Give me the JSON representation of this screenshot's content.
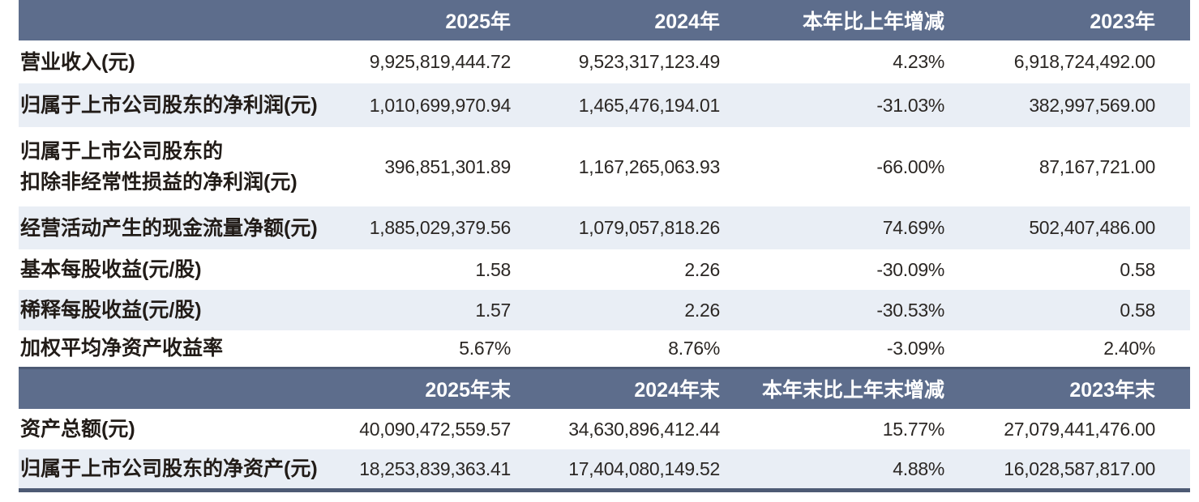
{
  "colors": {
    "header_band": "#5d6d8c",
    "stripe_row": "#e9eef5",
    "dark_border": "#4d5a74",
    "header_text": "#ffffff",
    "label_text": "#221c18",
    "number_text": "#2b2724"
  },
  "table": {
    "header_annual": {
      "blank": "",
      "cols": [
        "2025年",
        "2024年",
        "本年比上年增减",
        "2023年"
      ]
    },
    "annual_rows": [
      {
        "label": "营业收入(元)",
        "values": [
          "9,925,819,444.72",
          "9,523,317,123.49",
          "4.23%",
          "6,918,724,492.00"
        ]
      },
      {
        "label": "归属于上市公司股东的净利润(元)",
        "values": [
          "1,010,699,970.94",
          "1,465,476,194.01",
          "-31.03%",
          "382,997,569.00"
        ]
      },
      {
        "label": "归属于上市公司股东的\n扣除非经常性损益的净利润(元)",
        "values": [
          "396,851,301.89",
          "1,167,265,063.93",
          "-66.00%",
          "87,167,721.00"
        ]
      },
      {
        "label": "经营活动产生的现金流量净额(元)",
        "values": [
          "1,885,029,379.56",
          "1,079,057,818.26",
          "74.69%",
          "502,407,486.00"
        ]
      },
      {
        "label": "基本每股收益(元/股)",
        "values": [
          "1.58",
          "2.26",
          "-30.09%",
          "0.58"
        ]
      },
      {
        "label": "稀释每股收益(元/股)",
        "values": [
          "1.57",
          "2.26",
          "-30.53%",
          "0.58"
        ]
      },
      {
        "label": "加权平均净资产收益率",
        "values": [
          "5.67%",
          "8.76%",
          "-3.09%",
          "2.40%"
        ]
      }
    ],
    "header_eoy": {
      "blank": "",
      "cols": [
        "2025年末",
        "2024年末",
        "本年末比上年末增减",
        "2023年末"
      ]
    },
    "eoy_rows": [
      {
        "label": "资产总额(元)",
        "values": [
          "40,090,472,559.57",
          "34,630,896,412.44",
          "15.77%",
          "27,079,441,476.00"
        ]
      },
      {
        "label": "归属于上市公司股东的净资产(元)",
        "values": [
          "18,253,839,363.41",
          "17,404,080,149.52",
          "4.88%",
          "16,028,587,817.00"
        ]
      }
    ]
  }
}
